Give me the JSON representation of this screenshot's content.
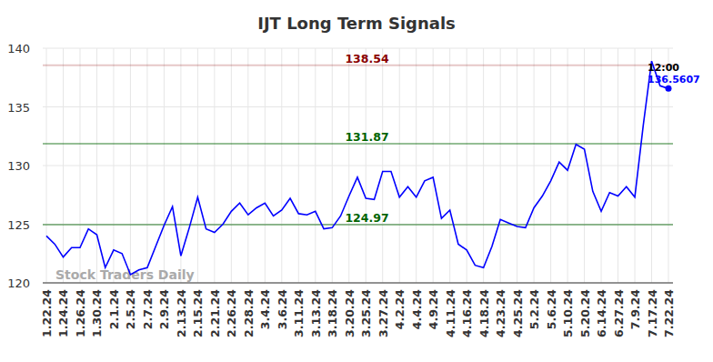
{
  "chart_data": {
    "type": "line",
    "title": "IJT Long Term Signals",
    "categories": [
      "1.22.24",
      null,
      "1.24.24",
      null,
      "1.26.24",
      null,
      "1.30.24",
      null,
      "2.1.24",
      null,
      "2.5.24",
      null,
      "2.7.24",
      null,
      "2.9.24",
      null,
      "2.13.24",
      null,
      "2.15.24",
      null,
      "2.21.24",
      null,
      "2.26.24",
      null,
      "2.28.24",
      null,
      "3.4.24",
      null,
      "3.6.24",
      null,
      "3.11.24",
      null,
      "3.13.24",
      null,
      "3.18.24",
      null,
      "3.20.24",
      null,
      "3.25.24",
      null,
      "3.27.24",
      null,
      "4.2.24",
      null,
      "4.4.24",
      null,
      "4.9.24",
      null,
      "4.11.24",
      null,
      "4.16.24",
      null,
      "4.18.24",
      null,
      "4.23.24",
      null,
      "4.25.24",
      null,
      "5.2.24",
      null,
      "5.6.24",
      null,
      "5.10.24",
      null,
      "5.20.24",
      null,
      "6.14.24",
      null,
      "6.27.24",
      null,
      "7.9.24",
      null,
      "7.17.24",
      null,
      "7.22.24"
    ],
    "values": [
      124.0,
      123.3,
      122.2,
      123.0,
      123.0,
      124.6,
      124.1,
      121.3,
      122.8,
      122.5,
      120.7,
      121.1,
      121.3,
      123.1,
      124.9,
      126.5,
      122.3,
      124.7,
      127.3,
      124.6,
      124.3,
      125.0,
      126.1,
      126.8,
      125.8,
      126.4,
      126.8,
      125.7,
      126.2,
      127.2,
      125.9,
      125.8,
      126.1,
      124.6,
      124.7,
      125.7,
      127.4,
      129.0,
      127.2,
      127.1,
      129.5,
      129.5,
      127.3,
      128.2,
      127.3,
      128.7,
      129.0,
      125.5,
      126.2,
      123.3,
      122.8,
      121.5,
      121.3,
      123.1,
      125.4,
      125.1,
      124.8,
      124.7,
      126.4,
      127.4,
      128.7,
      130.3,
      129.6,
      131.8,
      131.4,
      127.8,
      126.1,
      127.7,
      127.4,
      128.2,
      127.3,
      133.4,
      138.9,
      136.8,
      136.5607
    ],
    "color": "#0000ff",
    "ylim": [
      120,
      140
    ],
    "yticks": [
      120,
      125,
      130,
      135,
      140
    ],
    "grid": true,
    "reference_lines": [
      {
        "value": 138.54,
        "color": "#8b0000"
      },
      {
        "value": 131.87,
        "color": "#006400"
      },
      {
        "value": 124.97,
        "color": "#006400"
      }
    ],
    "annotations": [
      {
        "text": "12:00"
      }
    ],
    "watermark": "Stock Traders Daily"
  }
}
